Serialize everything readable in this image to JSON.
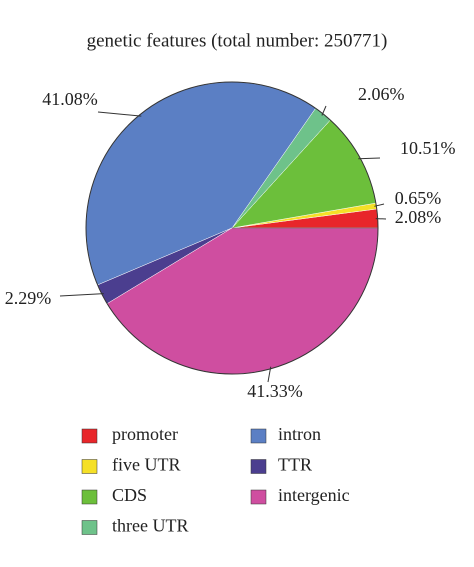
{
  "chart_data": {
    "type": "pie",
    "title": "genetic features (total number: 250771)",
    "categories": [
      "promoter",
      "five UTR",
      "CDS",
      "three UTR",
      "intron",
      "TTR",
      "intergenic"
    ],
    "values": [
      2.08,
      0.65,
      10.51,
      2.06,
      41.08,
      2.29,
      41.33
    ],
    "value_labels": [
      "2.08%",
      "0.65%",
      "10.51%",
      "2.06%",
      "41.08%",
      "2.29%",
      "41.33%"
    ],
    "colors": [
      "#e8262a",
      "#f5e027",
      "#6cbf3b",
      "#6ec28a",
      "#5b7fc4",
      "#4b3e8f",
      "#cf4ea0"
    ]
  }
}
